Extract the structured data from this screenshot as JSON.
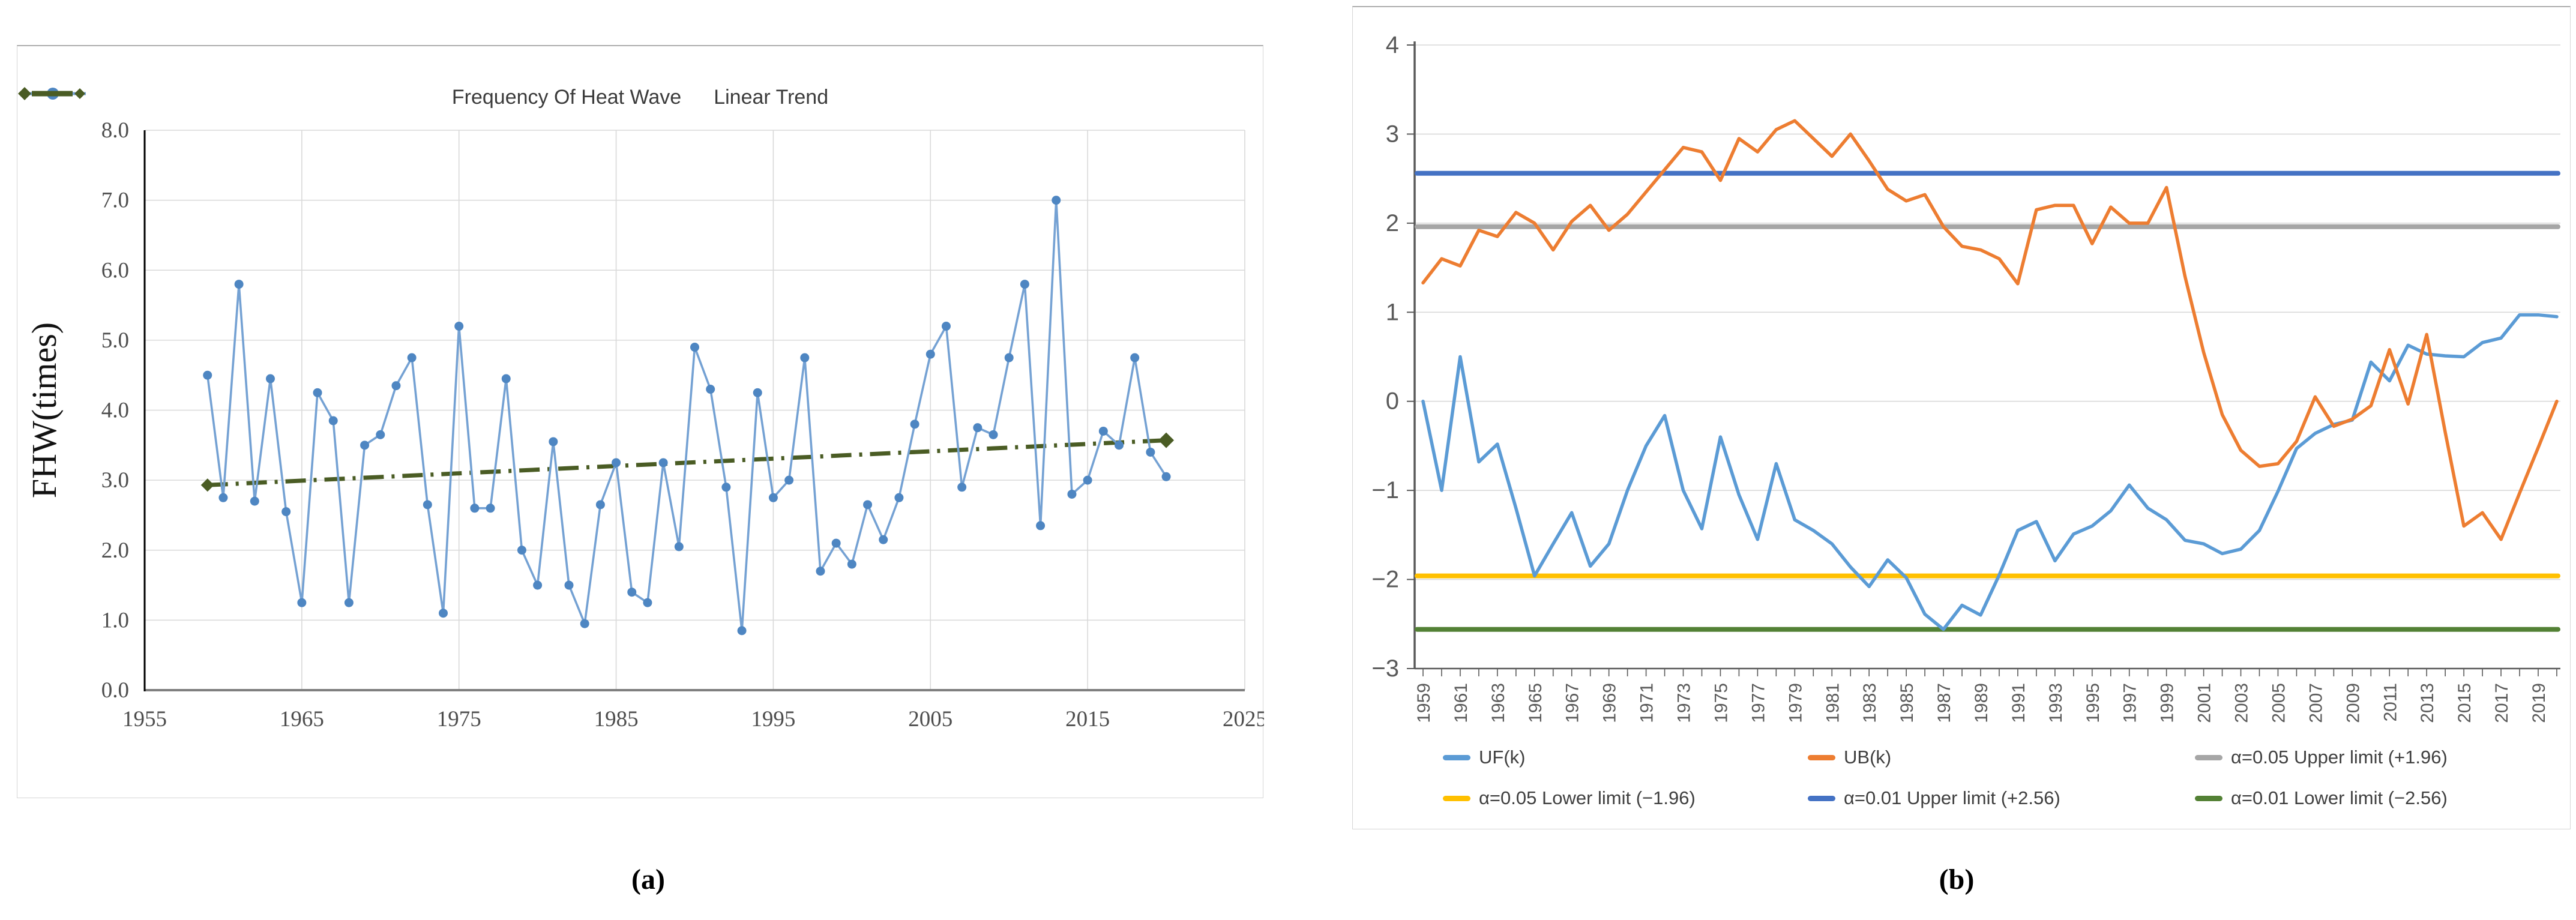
{
  "captions": {
    "a": "(a)",
    "b": "(b)"
  },
  "colors": {
    "fhw_line": "#74a1d3",
    "fhw_marker": "#4e86c2",
    "trend": "#4a5c24",
    "uf": "#5b9bd5",
    "ub": "#ed7d31",
    "limit_gray": "#a6a6a6",
    "limit_yellow": "#ffc000",
    "limit_blue": "#4472c4",
    "limit_green": "#538135",
    "grid": "#d9d9d9",
    "axis_a_spine": "#000000",
    "axis_a_base": "#7f7f7f",
    "axis_b": "#595959",
    "tick_text_a": "#4d4d4d",
    "tick_text_b": "#595959"
  },
  "panel_a": {
    "legend": [
      {
        "label": "Frequency Of Heat Wave",
        "type": "line-circle",
        "color": "#74a1d3",
        "marker_color": "#4e86c2"
      },
      {
        "label": "Linear Trend",
        "type": "dash-diamond",
        "color": "#4a5c24"
      }
    ],
    "y_axis": {
      "label": "FHW(times)",
      "tick_labels": [
        "0.0",
        "1.0",
        "2.0",
        "3.0",
        "4.0",
        "5.0",
        "6.0",
        "7.0",
        "8.0"
      ],
      "min": 0,
      "max": 8
    },
    "x_axis": {
      "tick_labels": [
        "1955",
        "1965",
        "1975",
        "1985",
        "1995",
        "2005",
        "2015",
        "2025"
      ],
      "min": 1955,
      "max": 2025
    }
  },
  "panel_b": {
    "y_axis": {
      "tick_labels": [
        "4",
        "3",
        "2",
        "1",
        "0",
        "−1",
        "−2",
        "−3"
      ],
      "min": -3,
      "max": 4
    },
    "x_axis": {
      "label_years": [
        "1959",
        "1961",
        "1963",
        "1965",
        "1967",
        "1969",
        "1971",
        "1973",
        "1975",
        "1977",
        "1979",
        "1981",
        "1983",
        "1985",
        "1987",
        "1989",
        "1991",
        "1993",
        "1995",
        "1997",
        "1999",
        "2001",
        "2003",
        "2005",
        "2007",
        "2009",
        "2011",
        "2013",
        "2015",
        "2017",
        "2019"
      ]
    },
    "legend_rows": [
      [
        {
          "label": "UF(k)",
          "color": "#5b9bd5"
        },
        {
          "label": "UB(k)",
          "color": "#ed7d31"
        },
        {
          "label": "α=0.05 Upper limit (+1.96)",
          "color": "#a6a6a6"
        }
      ],
      [
        {
          "label": "α=0.05 Lower limit (−1.96)",
          "color": "#ffc000"
        },
        {
          "label": "α=0.01 Upper limit (+2.56)",
          "color": "#4472c4"
        },
        {
          "label": "α=0.01 Lower limit (−2.56)",
          "color": "#538135"
        }
      ]
    ]
  },
  "chart_data": [
    {
      "type": "line",
      "ylabel": "FHW(times)",
      "xlim": [
        1955,
        2025
      ],
      "ylim": [
        0,
        8
      ],
      "grid": "both",
      "legend_position": "top-center",
      "series": [
        {
          "name": "Frequency Of Heat Wave",
          "color": "#74a1d3",
          "marker": "circle",
          "years": [
            1959,
            1960,
            1961,
            1962,
            1963,
            1964,
            1965,
            1966,
            1967,
            1968,
            1969,
            1970,
            1971,
            1972,
            1973,
            1974,
            1975,
            1976,
            1977,
            1978,
            1979,
            1980,
            1981,
            1982,
            1983,
            1984,
            1985,
            1986,
            1987,
            1988,
            1989,
            1990,
            1991,
            1992,
            1993,
            1994,
            1995,
            1996,
            1997,
            1998,
            1999,
            2000,
            2001,
            2002,
            2003,
            2004,
            2005,
            2006,
            2007,
            2008,
            2009,
            2010,
            2011,
            2012,
            2013,
            2014,
            2015,
            2016,
            2017,
            2018,
            2019,
            2020
          ],
          "values": [
            4.5,
            2.75,
            5.8,
            2.7,
            4.45,
            2.55,
            1.25,
            4.25,
            3.85,
            1.25,
            3.5,
            3.65,
            4.35,
            4.75,
            2.65,
            1.1,
            5.2,
            2.6,
            2.6,
            4.45,
            2.0,
            1.5,
            3.55,
            1.5,
            0.95,
            2.65,
            3.25,
            1.4,
            1.25,
            3.25,
            2.05,
            4.9,
            4.3,
            2.9,
            0.85,
            4.25,
            2.75,
            3.0,
            4.75,
            1.7,
            2.1,
            1.8,
            2.65,
            2.15,
            2.75,
            3.8,
            4.8,
            5.2,
            2.9,
            3.75,
            3.65,
            4.75,
            5.8,
            2.35,
            7.0,
            2.8,
            3.0,
            3.7,
            3.5,
            4.75,
            3.4,
            3.05
          ]
        },
        {
          "name": "Linear Trend",
          "color": "#4a5c24",
          "style": "long-dash-dot",
          "marker": "diamond-ends",
          "years": [
            1959,
            2020
          ],
          "values": [
            2.93,
            3.57
          ]
        }
      ]
    },
    {
      "type": "line",
      "xlim": [
        1959,
        2020
      ],
      "ylim": [
        -3,
        4
      ],
      "grid": "horizontal",
      "legend_position": "bottom",
      "years": [
        1959,
        1960,
        1961,
        1962,
        1963,
        1964,
        1965,
        1966,
        1967,
        1968,
        1969,
        1970,
        1971,
        1972,
        1973,
        1974,
        1975,
        1976,
        1977,
        1978,
        1979,
        1980,
        1981,
        1982,
        1983,
        1984,
        1985,
        1986,
        1987,
        1988,
        1989,
        1990,
        1991,
        1992,
        1993,
        1994,
        1995,
        1996,
        1997,
        1998,
        1999,
        2000,
        2001,
        2002,
        2003,
        2004,
        2005,
        2006,
        2007,
        2008,
        2009,
        2010,
        2011,
        2012,
        2013,
        2014,
        2015,
        2016,
        2017,
        2018,
        2019,
        2020
      ],
      "series": [
        {
          "name": "UF(k)",
          "color": "#5b9bd5",
          "values": [
            0.0,
            -1.0,
            0.5,
            -0.68,
            -0.48,
            -1.2,
            -1.96,
            -1.6,
            -1.25,
            -1.85,
            -1.6,
            -1.0,
            -0.5,
            -0.16,
            -1.0,
            -1.43,
            -0.4,
            -1.05,
            -1.55,
            -0.7,
            -1.33,
            -1.45,
            -1.6,
            -1.86,
            -2.08,
            -1.78,
            -1.98,
            -2.39,
            -2.56,
            -2.29,
            -2.4,
            -1.95,
            -1.45,
            -1.35,
            -1.79,
            -1.49,
            -1.4,
            -1.23,
            -0.94,
            -1.2,
            -1.33,
            -1.56,
            -1.6,
            -1.71,
            -1.66,
            -1.45,
            -1.01,
            -0.53,
            -0.36,
            -0.26,
            -0.21,
            0.44,
            0.23,
            0.63,
            0.53,
            0.51,
            0.5,
            0.66,
            0.71,
            0.97,
            0.97,
            0.95
          ]
        },
        {
          "name": "UB(k)",
          "color": "#ed7d31",
          "values": [
            1.33,
            1.6,
            1.52,
            1.92,
            1.85,
            2.12,
            2.0,
            1.7,
            2.02,
            2.2,
            1.92,
            2.1,
            2.35,
            2.6,
            2.85,
            2.8,
            2.48,
            2.95,
            2.8,
            3.05,
            3.15,
            2.95,
            2.75,
            3.0,
            2.7,
            2.38,
            2.25,
            2.32,
            1.96,
            1.74,
            1.7,
            1.6,
            1.32,
            2.15,
            2.2,
            2.2,
            1.77,
            2.18,
            2.0,
            2.0,
            2.4,
            1.4,
            0.55,
            -0.15,
            -0.55,
            -0.73,
            -0.7,
            -0.45,
            0.05,
            -0.28,
            -0.2,
            -0.05,
            0.58,
            -0.03,
            0.75,
            -0.35,
            -1.4,
            -1.25,
            -1.55,
            -1.03,
            -0.52,
            0.0
          ]
        }
      ],
      "reference_lines": [
        {
          "name": "α=0.01 Upper limit (+2.56)",
          "value": 2.56,
          "color": "#4472c4"
        },
        {
          "name": "α=0.05 Upper limit (+1.96)",
          "value": 1.96,
          "color": "#a6a6a6"
        },
        {
          "name": "α=0.05 Lower limit (−1.96)",
          "value": -1.96,
          "color": "#ffc000"
        },
        {
          "name": "α=0.01 Lower limit (−2.56)",
          "value": -2.56,
          "color": "#538135"
        }
      ]
    }
  ]
}
